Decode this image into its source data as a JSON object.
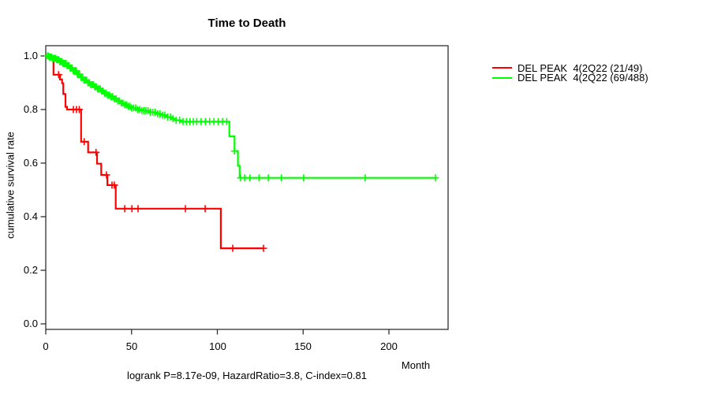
{
  "title": "Time to Death",
  "caption": "logrank P=8.17e-09, HazardRatio=3.8, C-index=0.81",
  "axes": {
    "x": {
      "label": "Month",
      "ticks": [
        0,
        50,
        100,
        150,
        200
      ]
    },
    "y": {
      "label": "cumulative survival rate",
      "ticks": [
        "1.0",
        "0.8",
        "0.6",
        "0.4",
        "0.2",
        "0.0"
      ]
    }
  },
  "legend": [
    {
      "label": "DEL PEAK  4(2Q22 (21/49)",
      "color": "#ff0000"
    },
    {
      "label": "DEL PEAK  4(2Q22 (69/488)",
      "color": "#00ff00"
    }
  ],
  "colors": {
    "box": "#404040",
    "tick": "#303030",
    "text": "#000000"
  },
  "chart_data": {
    "type": "line",
    "subtype": "kaplan-meier-step-curves",
    "title": "Time to Death",
    "xlabel": "Month",
    "ylabel": "cumulative survival rate",
    "xlim": [
      0,
      235
    ],
    "ylim": [
      0.0,
      1.0
    ],
    "x_ticks": [
      0,
      50,
      100,
      150,
      200
    ],
    "y_ticks": [
      0.0,
      0.2,
      0.4,
      0.6,
      0.8,
      1.0
    ],
    "grid": false,
    "legend_position": "top-right-outside",
    "series": [
      {
        "name": "DEL PEAK  4(2Q22 (21/49)",
        "color": "#ff0000",
        "events_total": "21/49",
        "steps": [
          [
            0,
            1.0
          ],
          [
            4.5,
            0.93
          ],
          [
            8.3,
            0.912
          ],
          [
            9.5,
            0.898
          ],
          [
            10.2,
            0.858
          ],
          [
            11.5,
            0.81
          ],
          [
            12.4,
            0.8
          ],
          [
            20.6,
            0.68
          ],
          [
            24.7,
            0.64
          ],
          [
            29.9,
            0.598
          ],
          [
            32.3,
            0.556
          ],
          [
            35.9,
            0.518
          ],
          [
            40.8,
            0.43
          ],
          [
            102,
            0.282
          ],
          [
            127,
            0.282
          ]
        ],
        "censor_months": [
          7.5,
          16.1,
          17.9,
          19.5,
          22.4,
          29.3,
          35.4,
          38.6,
          40,
          46,
          50.2,
          53.8,
          81.4,
          92.9,
          109,
          126.9
        ]
      },
      {
        "name": "DEL PEAK  4(2Q22 (69/488)",
        "color": "#00ff00",
        "events_total": "69/488",
        "steps": [
          [
            0,
            1.0
          ],
          [
            2,
            0.996
          ],
          [
            4,
            0.991
          ],
          [
            6,
            0.986
          ],
          [
            8,
            0.979
          ],
          [
            10,
            0.972
          ],
          [
            12,
            0.964
          ],
          [
            14,
            0.955
          ],
          [
            16,
            0.945
          ],
          [
            18,
            0.932
          ],
          [
            20,
            0.92
          ],
          [
            22,
            0.91
          ],
          [
            24,
            0.9
          ],
          [
            26,
            0.893
          ],
          [
            28,
            0.885
          ],
          [
            30,
            0.877
          ],
          [
            32,
            0.869
          ],
          [
            34,
            0.861
          ],
          [
            36,
            0.854
          ],
          [
            38,
            0.848
          ],
          [
            40,
            0.84
          ],
          [
            42,
            0.832
          ],
          [
            44,
            0.824
          ],
          [
            46,
            0.818
          ],
          [
            48,
            0.812
          ],
          [
            50,
            0.806
          ],
          [
            53,
            0.8
          ],
          [
            56,
            0.796
          ],
          [
            60,
            0.79
          ],
          [
            64,
            0.784
          ],
          [
            67,
            0.779
          ],
          [
            70,
            0.772
          ],
          [
            73,
            0.766
          ],
          [
            76,
            0.76
          ],
          [
            79,
            0.755
          ],
          [
            107,
            0.7
          ],
          [
            110,
            0.645
          ],
          [
            112,
            0.59
          ],
          [
            113,
            0.545
          ],
          [
            227.1,
            0.545
          ]
        ],
        "censor_months": [
          1,
          1.6,
          2.2,
          2.8,
          3.4,
          4,
          4.6,
          5.2,
          5.8,
          6.4,
          7,
          7.6,
          8.2,
          8.8,
          9.4,
          10,
          10.6,
          11.2,
          11.8,
          12.4,
          13,
          13.6,
          14.2,
          14.8,
          15.4,
          16,
          16.6,
          17.2,
          17.8,
          18.4,
          19,
          19.8,
          20.6,
          21.4,
          22.2,
          23,
          23.8,
          24.6,
          25.4,
          26.2,
          27,
          27.8,
          28.6,
          29.4,
          30.2,
          31,
          31.8,
          32.6,
          33.4,
          34.2,
          35,
          36,
          37,
          38,
          39,
          40,
          41,
          42,
          43,
          44,
          45,
          46,
          47,
          48,
          49,
          50,
          51.2,
          52.4,
          53.6,
          54.8,
          56,
          57.2,
          58.4,
          59.6,
          61,
          62.4,
          63.8,
          65.2,
          66.6,
          68,
          69.4,
          71,
          72.6,
          74.2,
          76,
          78,
          80,
          82,
          84,
          86,
          88,
          90.5,
          93,
          95.5,
          98,
          100.5,
          103,
          105.5,
          110,
          113.6,
          115.9,
          119,
          124.3,
          129.7,
          137.3,
          150.3,
          186.2,
          227.1
        ]
      }
    ]
  }
}
